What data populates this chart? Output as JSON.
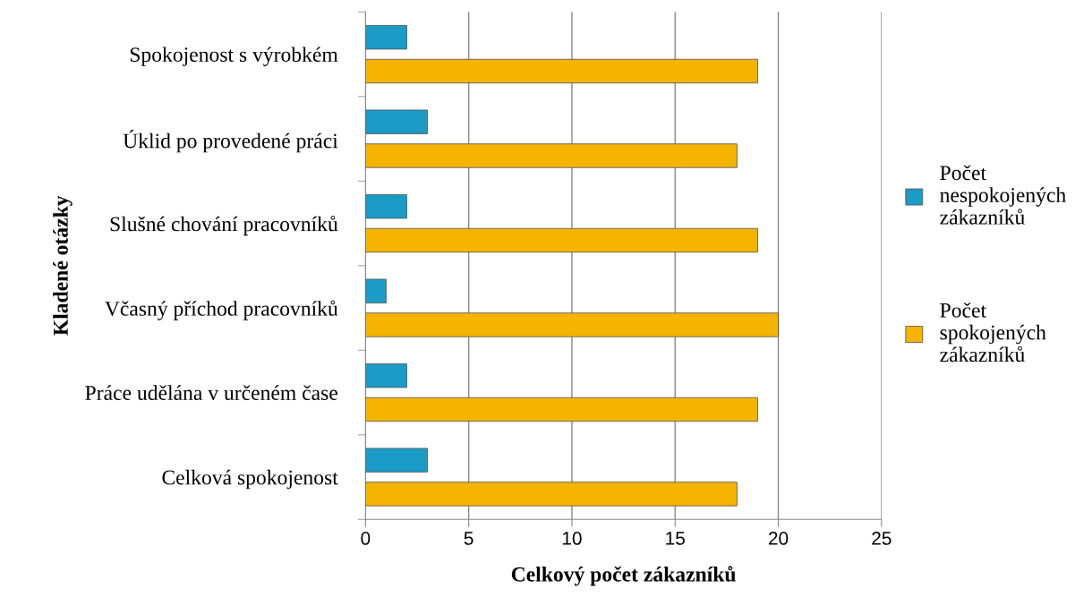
{
  "chart_data": {
    "type": "bar",
    "orientation": "horizontal",
    "xlabel": "Celkový počet zákazníků",
    "ylabel": "Kladené otázky",
    "categories": [
      "Spokojenost s výrobkém",
      "Úklid po provedené práci",
      "Slušné chování pracovníků",
      "Včasný příchod pracovníků",
      "Práce udělána v určeném čase",
      "Celková spokojenost"
    ],
    "series": [
      {
        "name": "Počet nespokojených zákazníků",
        "color": "#1a9cc7",
        "values": [
          2,
          3,
          2,
          1,
          2,
          3
        ]
      },
      {
        "name": "Počet spokojených zákazníků",
        "color": "#f5b400",
        "values": [
          19,
          18,
          19,
          20,
          19,
          18
        ]
      }
    ],
    "xlim": [
      0,
      25
    ],
    "xticks": [
      0,
      5,
      10,
      15,
      20,
      25
    ],
    "grid": "x",
    "legend": "right"
  }
}
